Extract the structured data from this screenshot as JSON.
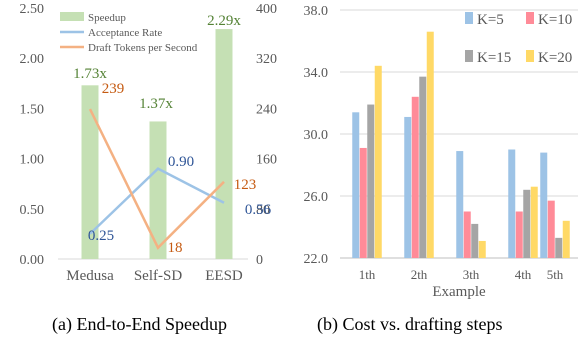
{
  "chart_data": [
    {
      "type": "bar",
      "categories": [
        "Medusa",
        "Self-SD",
        "EESD"
      ],
      "series": [
        {
          "name": "Speedup",
          "kind": "bar",
          "axis": "left",
          "color": "#c5e0b4",
          "values": [
            1.73,
            1.37,
            2.29
          ],
          "labels": [
            "1.73x",
            "1.37x",
            "2.29x"
          ],
          "label_color": "#548235"
        },
        {
          "name": "Acceptance Rate",
          "kind": "line",
          "axis": "left",
          "color": "#9dc3e6",
          "values": [
            0.25,
            0.9,
            0.56
          ],
          "labels": [
            "0.25",
            "0.90",
            "0.56"
          ],
          "label_color": "#2f5597"
        },
        {
          "name": "Draft Tokens per Second",
          "kind": "line",
          "axis": "right",
          "color": "#f4b183",
          "values": [
            239,
            18,
            123
          ],
          "labels": [
            "239",
            "18",
            "123"
          ],
          "label_color": "#c55a11"
        }
      ],
      "y_left": {
        "min": 0,
        "max": 2.5,
        "ticks": [
          "0.00",
          "0.50",
          "1.00",
          "1.50",
          "2.00",
          "2.50"
        ]
      },
      "y_right": {
        "min": 0,
        "max": 400,
        "ticks": [
          "0",
          "80",
          "160",
          "240",
          "320",
          "400"
        ]
      },
      "legend_position": "top-left",
      "grid": false
    },
    {
      "type": "bar",
      "categories": [
        "1th",
        "2th",
        "3th",
        "4th",
        "5th"
      ],
      "xlabel": "Example",
      "series": [
        {
          "name": "K=5",
          "color": "#9dc3e6",
          "values": [
            31.4,
            31.1,
            28.9,
            29.0,
            28.8
          ]
        },
        {
          "name": "K=10",
          "color": "#ff8b98",
          "values": [
            29.1,
            32.4,
            25.0,
            25.0,
            25.7
          ]
        },
        {
          "name": "K=15",
          "color": "#a5a5a5",
          "values": [
            31.9,
            33.7,
            24.2,
            26.4,
            23.3
          ]
        },
        {
          "name": "K=20",
          "color": "#ffd966",
          "values": [
            34.4,
            36.6,
            23.1,
            26.6,
            24.4
          ]
        }
      ],
      "y": {
        "min": 22.0,
        "max": 38.0,
        "ticks": [
          "22.0",
          "26.0",
          "30.0",
          "34.0",
          "38.0"
        ]
      },
      "legend_position": "top-right",
      "grid": true
    }
  ],
  "captions": {
    "left": "(a) End-to-End Speedup",
    "right": "(b) Cost vs. drafting steps"
  }
}
